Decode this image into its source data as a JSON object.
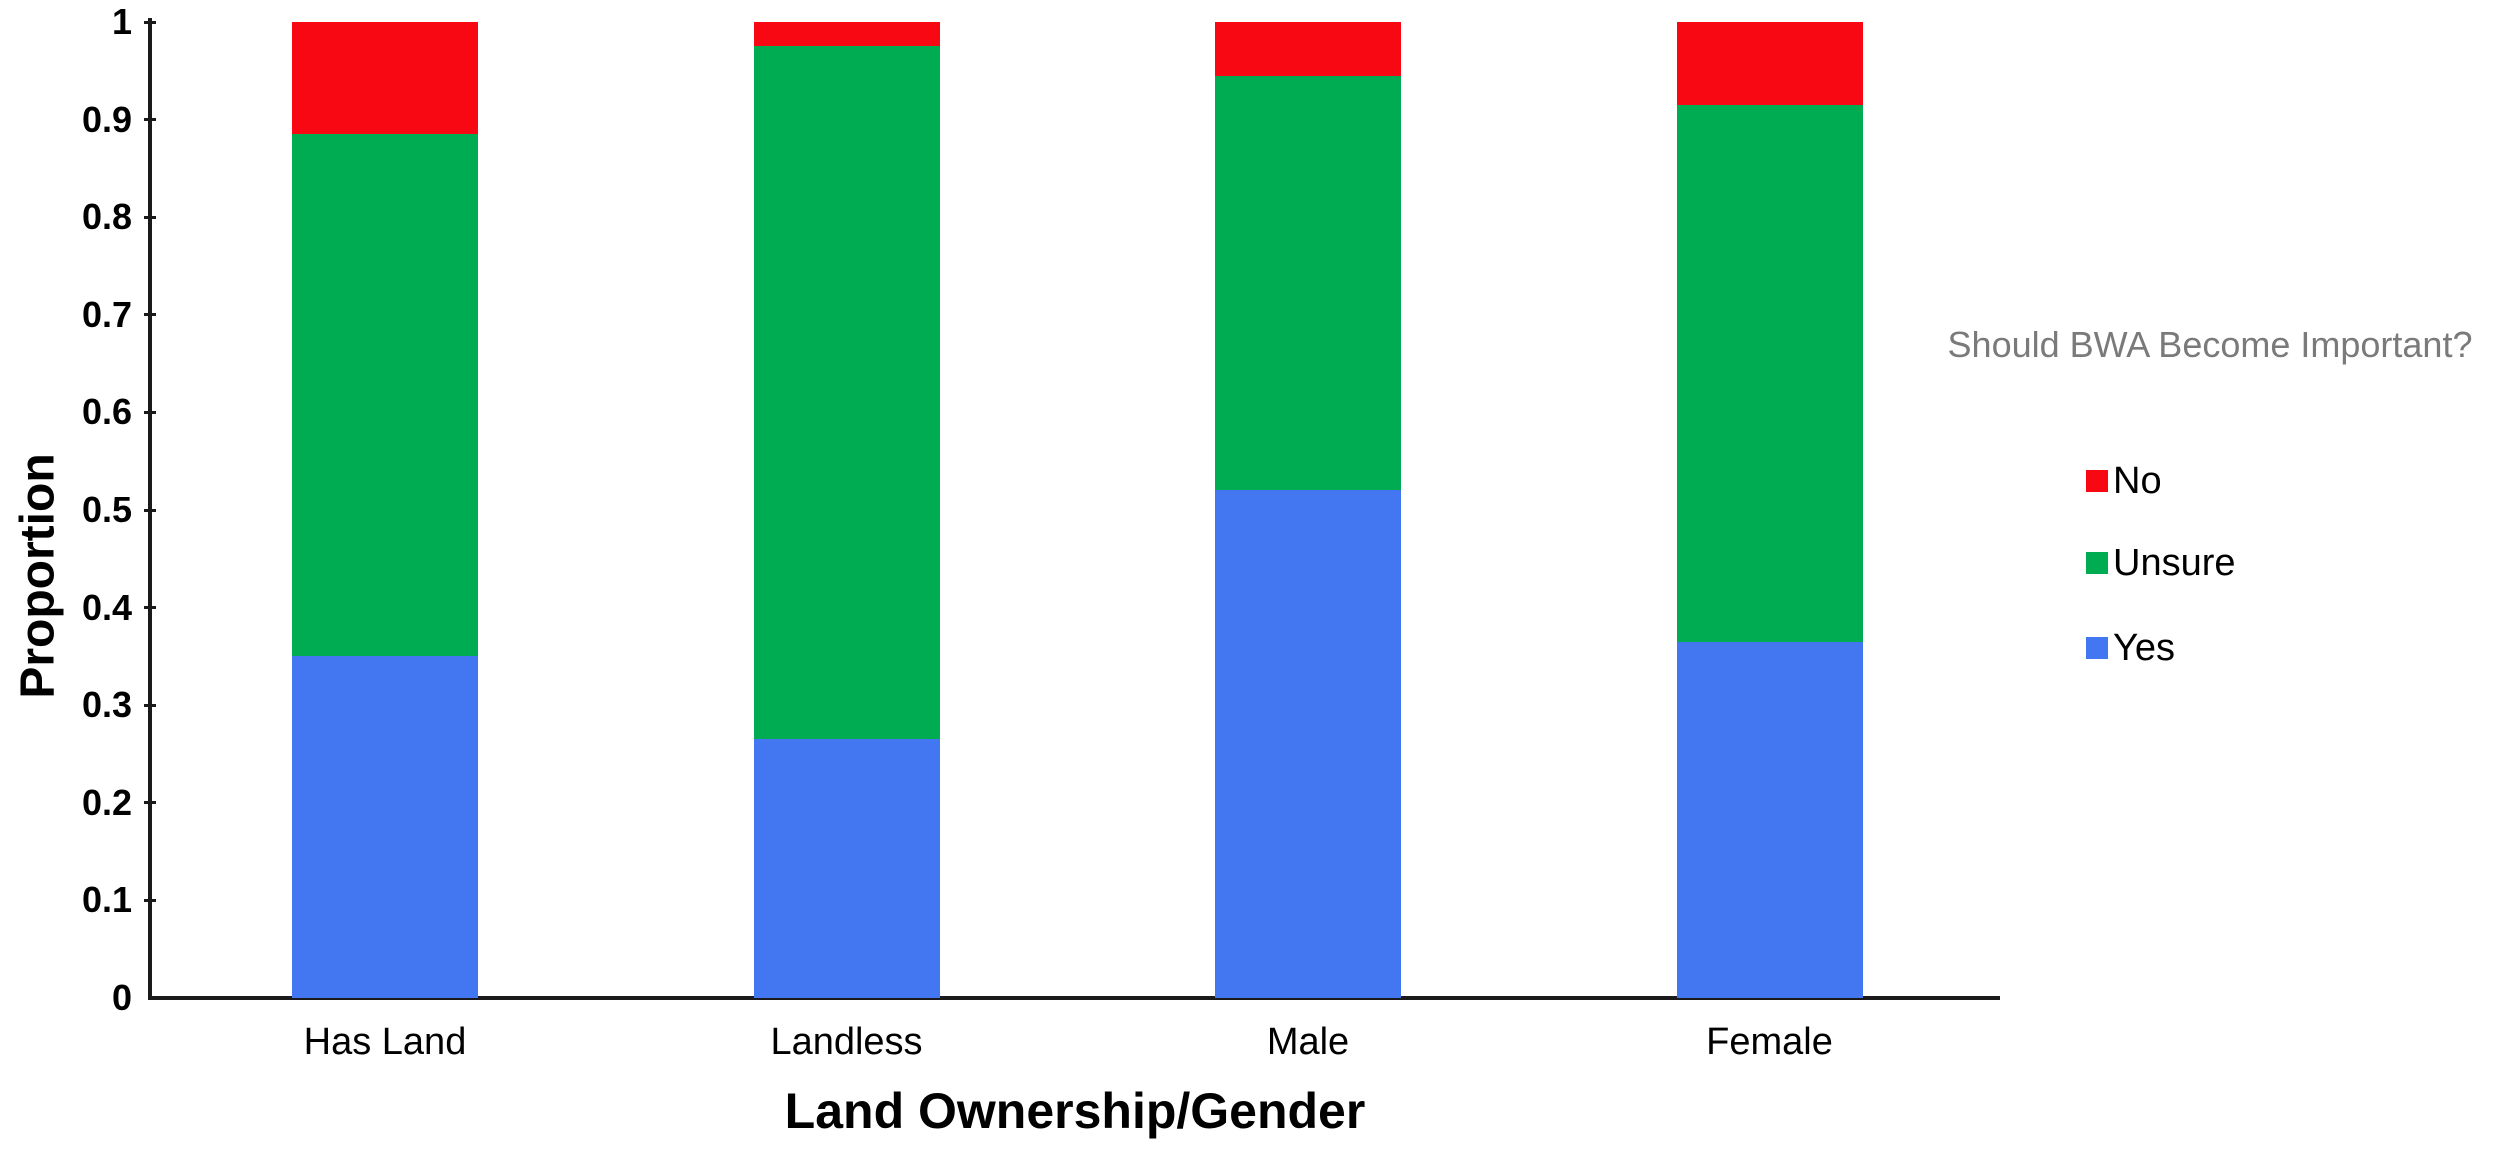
{
  "page": {
    "background": "#FFFFFF"
  },
  "chart_data": {
    "type": "bar",
    "stacked": true,
    "title": "",
    "xlabel": "Land Ownership/Gender",
    "ylabel": "Proportion",
    "categories": [
      "Has Land",
      "Landless",
      "Male",
      "Female"
    ],
    "series": [
      {
        "name": "Yes",
        "color": "#4377F2",
        "values": [
          0.35,
          0.265,
          0.52,
          0.365
        ]
      },
      {
        "name": "Unsure",
        "color": "#00AC51",
        "values": [
          0.535,
          0.71,
          0.425,
          0.55
        ]
      },
      {
        "name": "No",
        "color": "#F70813",
        "values": [
          0.115,
          0.025,
          0.055,
          0.085
        ]
      }
    ],
    "ylim": [
      0,
      1
    ],
    "ytick_labels": [
      "0",
      "0.1",
      "0.2",
      "0.3",
      "0.4",
      "0.5",
      "0.6",
      "0.7",
      "0.8",
      "0.9",
      "1"
    ],
    "grid": false,
    "axis_color": "#1A1A1A",
    "text_color": "#000000",
    "legend": {
      "title": "Should BWA Become Important?",
      "title_color": "#7A7A7A",
      "position": "right",
      "entries": [
        "No",
        "Unsure",
        "Yes"
      ]
    }
  }
}
